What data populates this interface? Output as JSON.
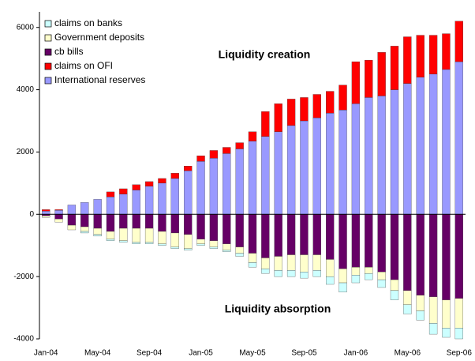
{
  "chart_data": {
    "type": "stacked_bar",
    "categories": [
      "Jan-04",
      null,
      null,
      null,
      "May-04",
      null,
      null,
      null,
      "Sep-04",
      null,
      null,
      null,
      "Jan-05",
      null,
      null,
      null,
      "May-05",
      null,
      null,
      null,
      "Sep-05",
      null,
      null,
      null,
      "Jan-06",
      null,
      null,
      null,
      "May-06",
      null,
      null,
      null,
      "Sep-06"
    ],
    "series": [
      {
        "name": "claims on banks",
        "color": "#ccffff",
        "values": [
          0,
          0,
          0,
          -50,
          -50,
          -50,
          -50,
          -50,
          -50,
          -50,
          -50,
          -50,
          -50,
          -50,
          -50,
          -100,
          -150,
          -150,
          -200,
          -200,
          -200,
          -200,
          -250,
          -300,
          -250,
          -200,
          -250,
          -300,
          -300,
          -300,
          -350,
          -300,
          -350
        ]
      },
      {
        "name": "Government deposits",
        "color": "#ffffcc",
        "values": [
          -50,
          -100,
          -150,
          -150,
          -200,
          -250,
          -400,
          -450,
          -450,
          -400,
          -450,
          -450,
          -150,
          -200,
          -200,
          -200,
          -300,
          -350,
          -450,
          -500,
          -550,
          -500,
          -550,
          -450,
          -250,
          -200,
          -250,
          -350,
          -450,
          -500,
          -850,
          -900,
          -950
        ]
      },
      {
        "name": "cb bills",
        "color": "#660066",
        "values": [
          -50,
          -150,
          -350,
          -400,
          -450,
          -550,
          -450,
          -450,
          -450,
          -550,
          -600,
          -650,
          -800,
          -850,
          -950,
          -1050,
          -1250,
          -1400,
          -1350,
          -1300,
          -1300,
          -1300,
          -1450,
          -1750,
          -1700,
          -1700,
          -1850,
          -2100,
          -2450,
          -2600,
          -2650,
          -2750,
          -2700
        ]
      },
      {
        "name": "claims on OFI",
        "color": "#ff0000",
        "values": [
          50,
          20,
          0,
          0,
          0,
          160,
          170,
          170,
          150,
          150,
          170,
          150,
          180,
          250,
          200,
          200,
          300,
          800,
          900,
          850,
          750,
          750,
          700,
          800,
          1350,
          1200,
          1400,
          1400,
          1500,
          1350,
          1250,
          1150,
          1300
        ]
      },
      {
        "name": "International reserves",
        "color": "#9999ff",
        "values": [
          100,
          130,
          300,
          380,
          480,
          560,
          650,
          780,
          900,
          1000,
          1150,
          1400,
          1700,
          1800,
          1950,
          2100,
          2350,
          2500,
          2650,
          2850,
          3000,
          3100,
          3250,
          3350,
          3550,
          3750,
          3800,
          4000,
          4200,
          4400,
          4500,
          4650,
          4900
        ]
      }
    ],
    "annotations": [
      "Liquidity creation",
      "Liquidity absorption"
    ],
    "ylim": [
      -4000,
      6500
    ],
    "yticks": [
      -4000,
      -2000,
      0,
      2000,
      4000,
      6000
    ]
  }
}
